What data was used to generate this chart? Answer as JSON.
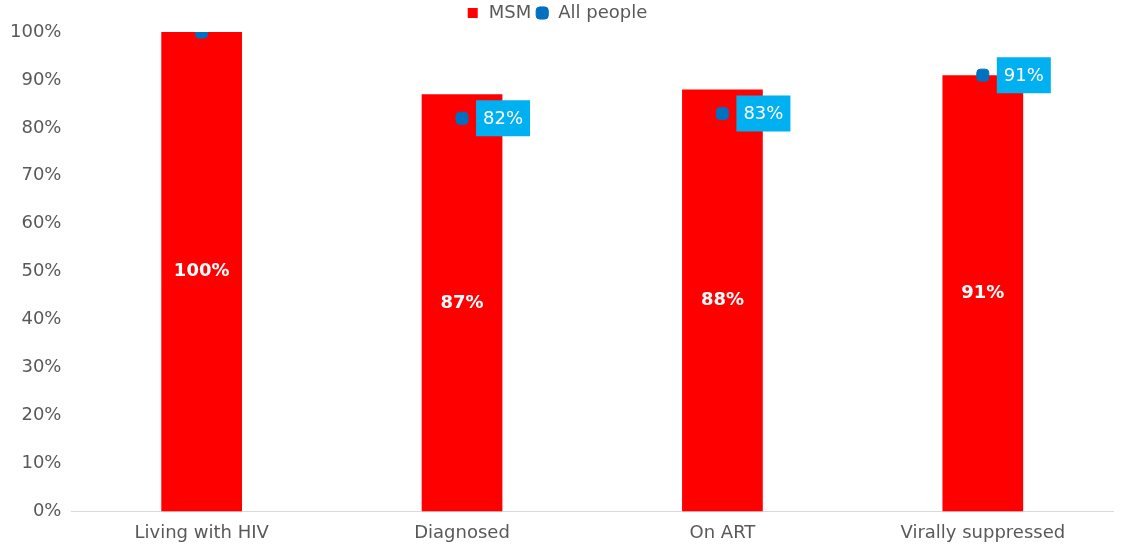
{
  "chart_data": {
    "type": "bar",
    "categories": [
      "Living with HIV",
      "Diagnosed",
      "On ART",
      "Virally suppressed"
    ],
    "series": [
      {
        "name": "MSM",
        "color": "#ff0000",
        "values": [
          100,
          87,
          88,
          91
        ],
        "value_labels": [
          "100%",
          "87%",
          "88%",
          "91%"
        ]
      },
      {
        "name": "All people",
        "type": "scatter",
        "color": "#0070c0",
        "values": [
          100,
          82,
          83,
          91
        ],
        "value_labels": [
          null,
          "82%",
          "83%",
          "91%"
        ]
      }
    ],
    "ylim": [
      0,
      100
    ],
    "yticks": [
      {
        "value": 0,
        "label": "0%"
      },
      {
        "value": 10,
        "label": "10%"
      },
      {
        "value": 20,
        "label": "20%"
      },
      {
        "value": 30,
        "label": "30%"
      },
      {
        "value": 40,
        "label": "40%"
      },
      {
        "value": 50,
        "label": "50%"
      },
      {
        "value": 60,
        "label": "60%"
      },
      {
        "value": 70,
        "label": "70%"
      },
      {
        "value": 80,
        "label": "80%"
      },
      {
        "value": 90,
        "label": "90%"
      },
      {
        "value": 100,
        "label": "100%"
      }
    ],
    "grid": false,
    "legend": "top"
  }
}
